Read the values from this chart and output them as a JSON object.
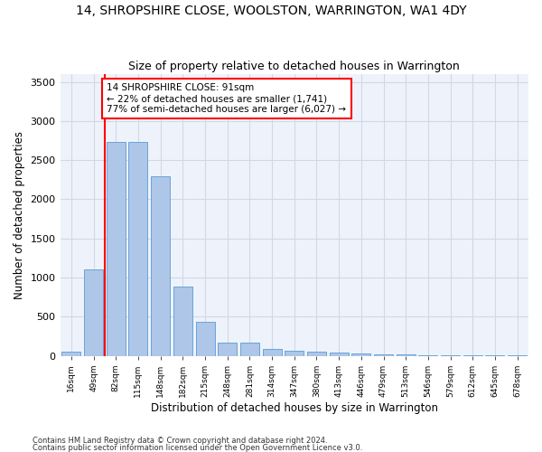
{
  "title": "14, SHROPSHIRE CLOSE, WOOLSTON, WARRINGTON, WA1 4DY",
  "subtitle": "Size of property relative to detached houses in Warrington",
  "xlabel": "Distribution of detached houses by size in Warrington",
  "ylabel": "Number of detached properties",
  "footer1": "Contains HM Land Registry data © Crown copyright and database right 2024.",
  "footer2": "Contains public sector information licensed under the Open Government Licence v3.0.",
  "bar_labels": [
    "16sqm",
    "49sqm",
    "82sqm",
    "115sqm",
    "148sqm",
    "182sqm",
    "215sqm",
    "248sqm",
    "281sqm",
    "314sqm",
    "347sqm",
    "380sqm",
    "413sqm",
    "446sqm",
    "479sqm",
    "513sqm",
    "546sqm",
    "579sqm",
    "612sqm",
    "645sqm",
    "678sqm"
  ],
  "bar_values": [
    50,
    1100,
    2730,
    2730,
    2290,
    880,
    430,
    170,
    170,
    90,
    60,
    55,
    40,
    25,
    15,
    15,
    10,
    10,
    8,
    5,
    5
  ],
  "bar_color": "#aec6e8",
  "bar_edgecolor": "#5b9bd5",
  "vline_x": 1.5,
  "vline_color": "red",
  "annotation_text": "14 SHROPSHIRE CLOSE: 91sqm\n← 22% of detached houses are smaller (1,741)\n77% of semi-detached houses are larger (6,027) →",
  "annotation_box_color": "white",
  "annotation_box_edgecolor": "red",
  "ylim": [
    0,
    3600
  ],
  "yticks": [
    0,
    500,
    1000,
    1500,
    2000,
    2500,
    3000,
    3500
  ],
  "bg_color": "#eef3fb",
  "grid_color": "#d0d8e8",
  "title_fontsize": 10,
  "subtitle_fontsize": 9,
  "xlabel_fontsize": 8.5,
  "ylabel_fontsize": 8.5
}
